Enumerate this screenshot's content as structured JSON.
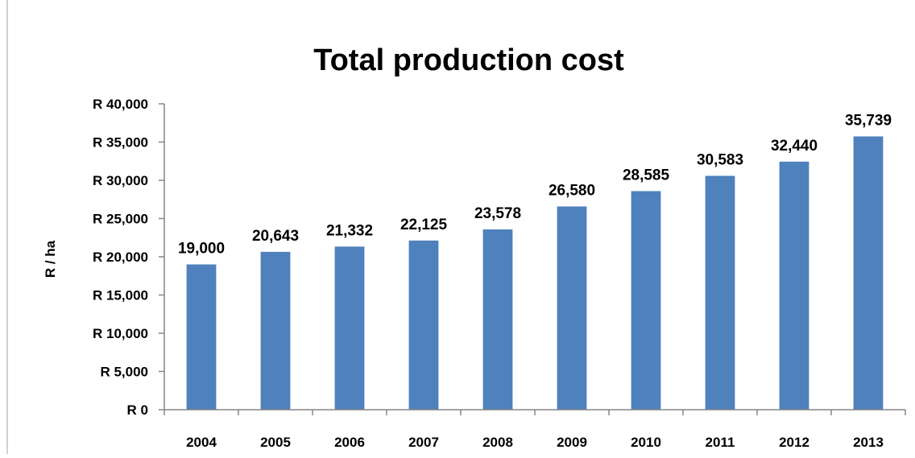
{
  "chart_data": {
    "type": "bar",
    "title": "Total production cost",
    "xlabel": "",
    "ylabel": "R / ha",
    "categories": [
      "2004",
      "2005",
      "2006",
      "2007",
      "2008",
      "2009",
      "2010",
      "2011",
      "2012",
      "2013"
    ],
    "series": [
      {
        "values": [
          19000,
          20643,
          21332,
          22125,
          23578,
          26580,
          28585,
          30583,
          32440,
          35739
        ],
        "color": "#4f81bd"
      }
    ],
    "data_labels": [
      "19,000",
      "20,643",
      "21,332",
      "22,125",
      "23,578",
      "26,580",
      "28,585",
      "30,583",
      "32,440",
      "35,739"
    ],
    "ylim": [
      0,
      40000
    ],
    "y_ticks": [
      0,
      5000,
      10000,
      15000,
      20000,
      25000,
      30000,
      35000,
      40000
    ],
    "y_tick_labels": [
      "R 0",
      "R 5,000",
      "R 10,000",
      "R 15,000",
      "R 20,000",
      "R 25,000",
      "R 30,000",
      "R 35,000",
      "R 40,000"
    ],
    "grid": false,
    "legend": "none"
  }
}
